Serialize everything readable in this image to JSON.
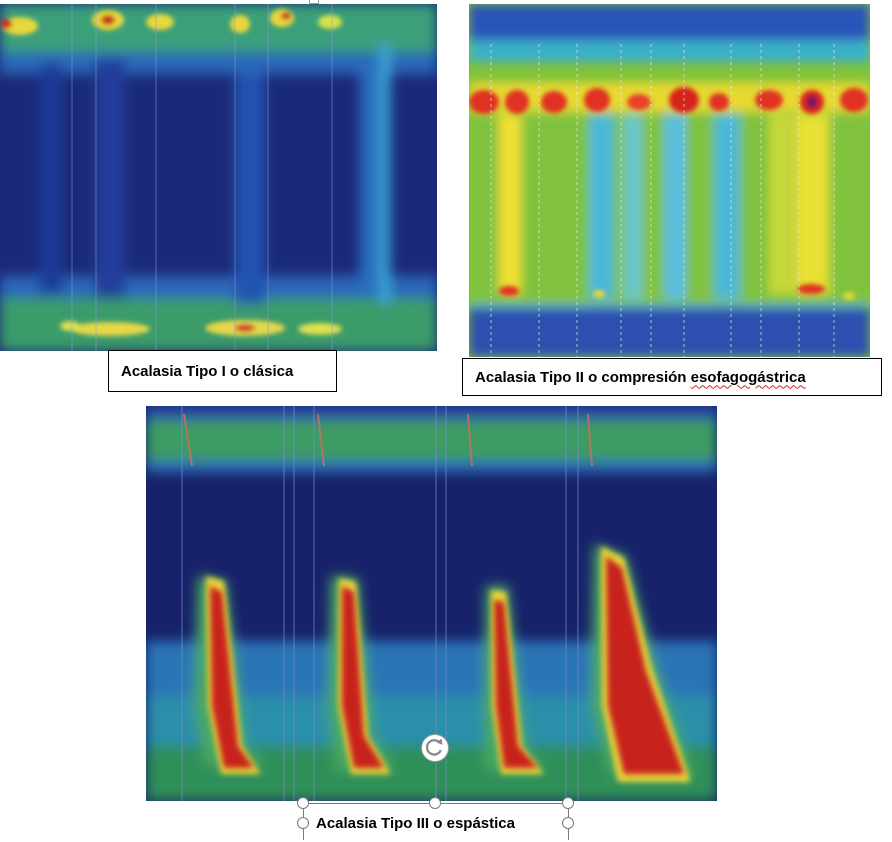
{
  "panels": {
    "tipo1": {
      "caption": "Acalasia Tipo I o clásica"
    },
    "tipo2": {
      "caption_main": "Acalasia Tipo II o compresión ",
      "caption_flagged": "esofagogástrica"
    },
    "tipo3": {
      "caption": "Acalasia Tipo III o espástica"
    }
  },
  "icons": {
    "rotate": "rotate-handle-icon",
    "resize": "resize-handle-icon"
  },
  "colors": {
    "deep_blue": "#16246b",
    "blue": "#2f5fc0",
    "cyan": "#4fb8e0",
    "green": "#5db94a",
    "yellow": "#f1e23a",
    "red": "#c8201e",
    "spell_underline": "#e02020"
  }
}
